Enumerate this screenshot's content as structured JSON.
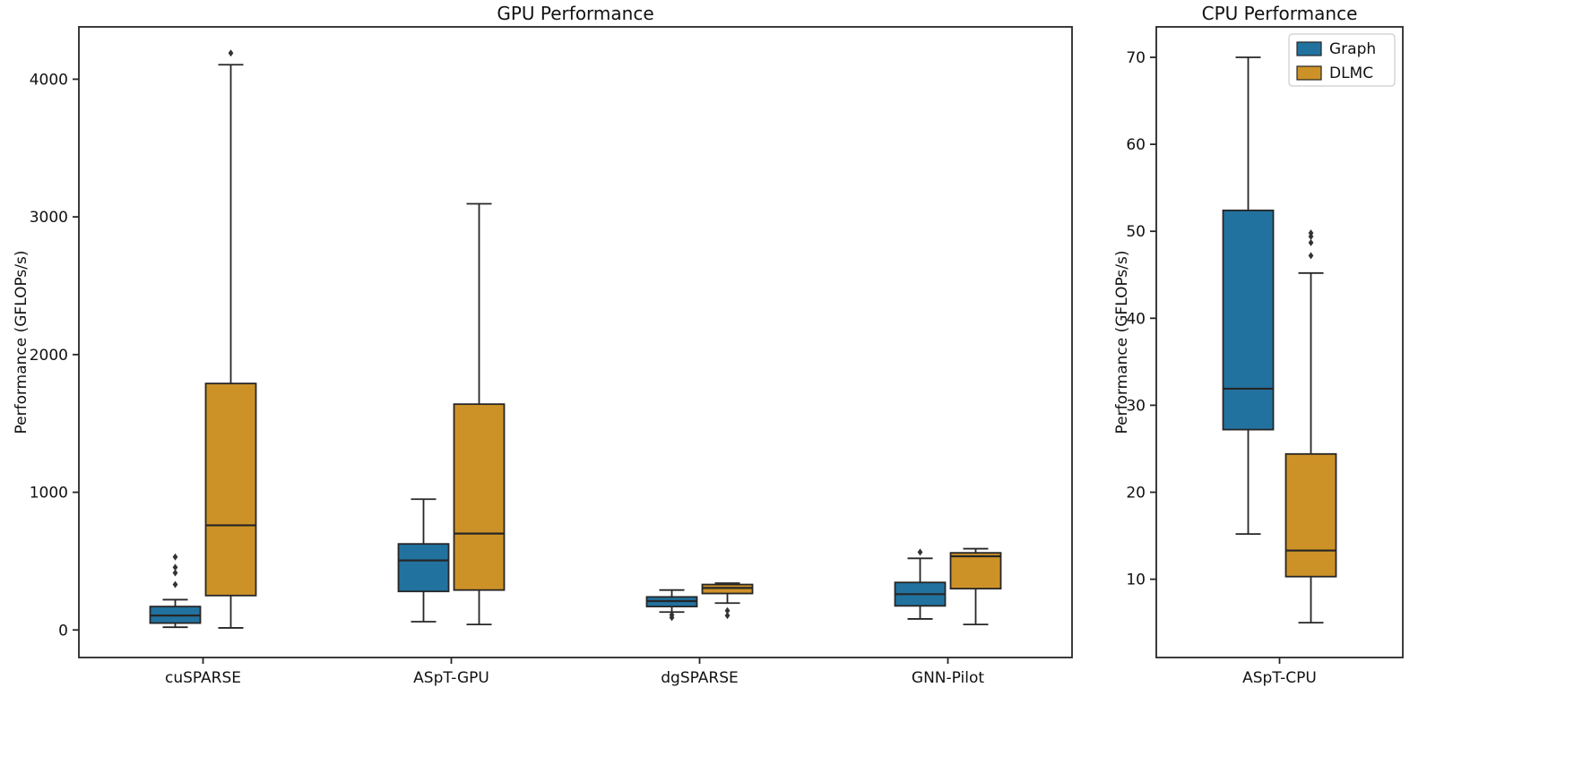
{
  "style": {
    "background": "#ffffff",
    "edge_color": "#262626",
    "flier_color": "#333333",
    "text_color": "#111111",
    "legend_border": "#cccccc",
    "series_colors": {
      "Graph": "#22729f",
      "DLMC": "#cd9227"
    }
  },
  "chart_data": [
    {
      "type": "boxplot",
      "title": "GPU Performance",
      "ylabel": "Performance (GFLOPs/s)",
      "ylim": [
        -200,
        4380
      ],
      "yticks": [
        0,
        1000,
        2000,
        3000,
        4000
      ],
      "categories": [
        "cuSPARSE",
        "ASpT-GPU",
        "dgSPARSE",
        "GNN-Pilot"
      ],
      "grid": false,
      "legend": null,
      "series": [
        {
          "name": "Graph",
          "color": "#22729f",
          "boxes": [
            {
              "whislo": 20,
              "q1": 50,
              "med": 105,
              "q3": 170,
              "whishi": 220,
              "fliers": [
                330,
                415,
                455,
                530
              ]
            },
            {
              "whislo": 60,
              "q1": 280,
              "med": 505,
              "q3": 625,
              "whishi": 950,
              "fliers": []
            },
            {
              "whislo": 130,
              "q1": 170,
              "med": 210,
              "q3": 240,
              "whishi": 290,
              "fliers": [
                90,
                110
              ]
            },
            {
              "whislo": 80,
              "q1": 175,
              "med": 260,
              "q3": 345,
              "whishi": 520,
              "fliers": [
                565
              ]
            }
          ]
        },
        {
          "name": "DLMC",
          "color": "#cd9227",
          "boxes": [
            {
              "whislo": 15,
              "q1": 250,
              "med": 760,
              "q3": 1790,
              "whishi": 4105,
              "fliers": [
                4190
              ]
            },
            {
              "whislo": 40,
              "q1": 290,
              "med": 700,
              "q3": 1640,
              "whishi": 3095,
              "fliers": []
            },
            {
              "whislo": 195,
              "q1": 265,
              "med": 305,
              "q3": 330,
              "whishi": 340,
              "fliers": [
                105,
                140
              ]
            },
            {
              "whislo": 40,
              "q1": 300,
              "med": 535,
              "q3": 560,
              "whishi": 590,
              "fliers": []
            }
          ]
        }
      ]
    },
    {
      "type": "boxplot",
      "title": "CPU Performance",
      "ylabel": "Performance (GFLOPs/s)",
      "ylim": [
        1,
        73.5
      ],
      "yticks": [
        10,
        20,
        30,
        40,
        50,
        60,
        70
      ],
      "categories": [
        "ASpT-CPU"
      ],
      "grid": false,
      "legend": {
        "position": "upper right",
        "entries": [
          "Graph",
          "DLMC"
        ]
      },
      "series": [
        {
          "name": "Graph",
          "color": "#22729f",
          "boxes": [
            {
              "whislo": 15.2,
              "q1": 27.2,
              "med": 31.9,
              "q3": 52.4,
              "whishi": 70.0,
              "fliers": []
            }
          ]
        },
        {
          "name": "DLMC",
          "color": "#cd9227",
          "boxes": [
            {
              "whislo": 5.0,
              "q1": 10.3,
              "med": 13.3,
              "q3": 24.4,
              "whishi": 45.2,
              "fliers": [
                47.2,
                48.7,
                49.4,
                49.8
              ]
            }
          ]
        }
      ]
    }
  ]
}
